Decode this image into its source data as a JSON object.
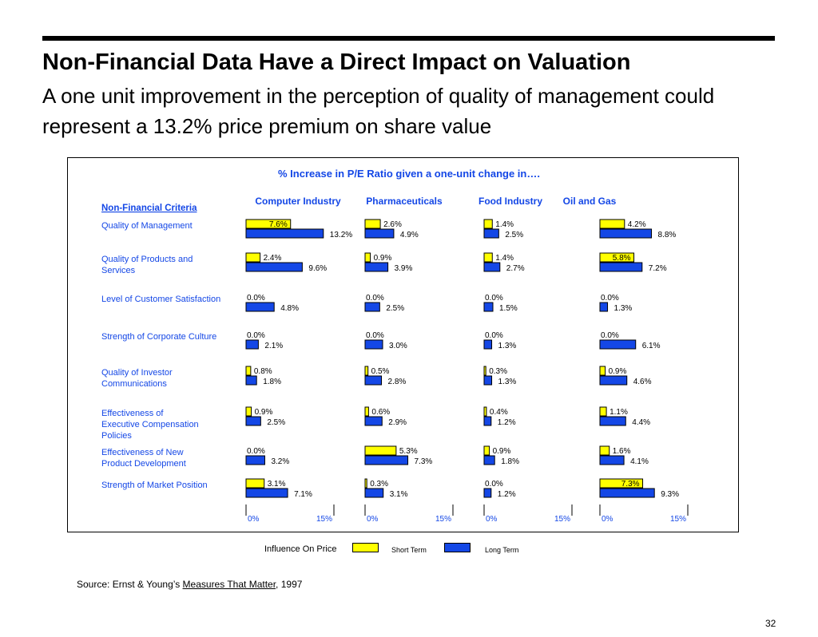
{
  "slide": {
    "title": "Non-Financial Data Have a Direct Impact on Valuation",
    "subtitle": "A one unit improvement in the perception of quality of management could represent a 13.2% price premium on share value",
    "source_prefix": "Source:  Ernst & Young’s ",
    "source_title": "Measures That Matter",
    "source_suffix": ", 1997",
    "page_number": "32"
  },
  "colors": {
    "short_term": "#ffff00",
    "long_term": "#1447e6",
    "heading_text": "#1447e6",
    "criteria_text": "#1447e6"
  },
  "chart_data": {
    "type": "bar",
    "title": "% Increase in P/E Ratio given a one-unit change in….",
    "criteria_header": "Non-Financial Criteria",
    "criteria": [
      "Quality of Management",
      "Quality of Products and Services",
      "Level of Customer Satisfaction",
      "Strength of Corporate Culture",
      "Quality of Investor Communications",
      "Effectiveness of Executive Compensation Policies",
      "Effectiveness of New Product Development",
      "Strength of Market Position"
    ],
    "axis": {
      "min": 0,
      "max": 15,
      "tick_labels": [
        "0%",
        "15%"
      ],
      "unit": "%"
    },
    "legend": {
      "title": "Influence On Price",
      "short_label": "Short Term",
      "long_label": "Long Term",
      "position": "bottom"
    },
    "industries": [
      {
        "name": "Computer Industry",
        "short": [
          7.6,
          2.4,
          0.0,
          0.0,
          0.8,
          0.9,
          0.0,
          3.1
        ],
        "long": [
          13.2,
          9.6,
          4.8,
          2.1,
          1.8,
          2.5,
          3.2,
          7.1
        ]
      },
      {
        "name": "Pharmaceuticals",
        "short": [
          2.6,
          0.9,
          0.0,
          0.0,
          0.5,
          0.6,
          5.3,
          0.3
        ],
        "long": [
          4.9,
          3.9,
          2.5,
          3.0,
          2.8,
          2.9,
          7.3,
          3.1
        ]
      },
      {
        "name": "Food Industry",
        "short": [
          1.4,
          1.4,
          0.0,
          0.0,
          0.3,
          0.4,
          0.9,
          0.0
        ],
        "long": [
          2.5,
          2.7,
          1.5,
          1.3,
          1.3,
          1.2,
          1.8,
          1.2
        ]
      },
      {
        "name": "Oil and Gas",
        "short": [
          4.2,
          5.8,
          0.0,
          0.0,
          0.9,
          1.1,
          1.6,
          7.3
        ],
        "long": [
          8.8,
          7.2,
          1.3,
          6.1,
          4.6,
          4.4,
          4.1,
          9.3
        ]
      }
    ]
  }
}
